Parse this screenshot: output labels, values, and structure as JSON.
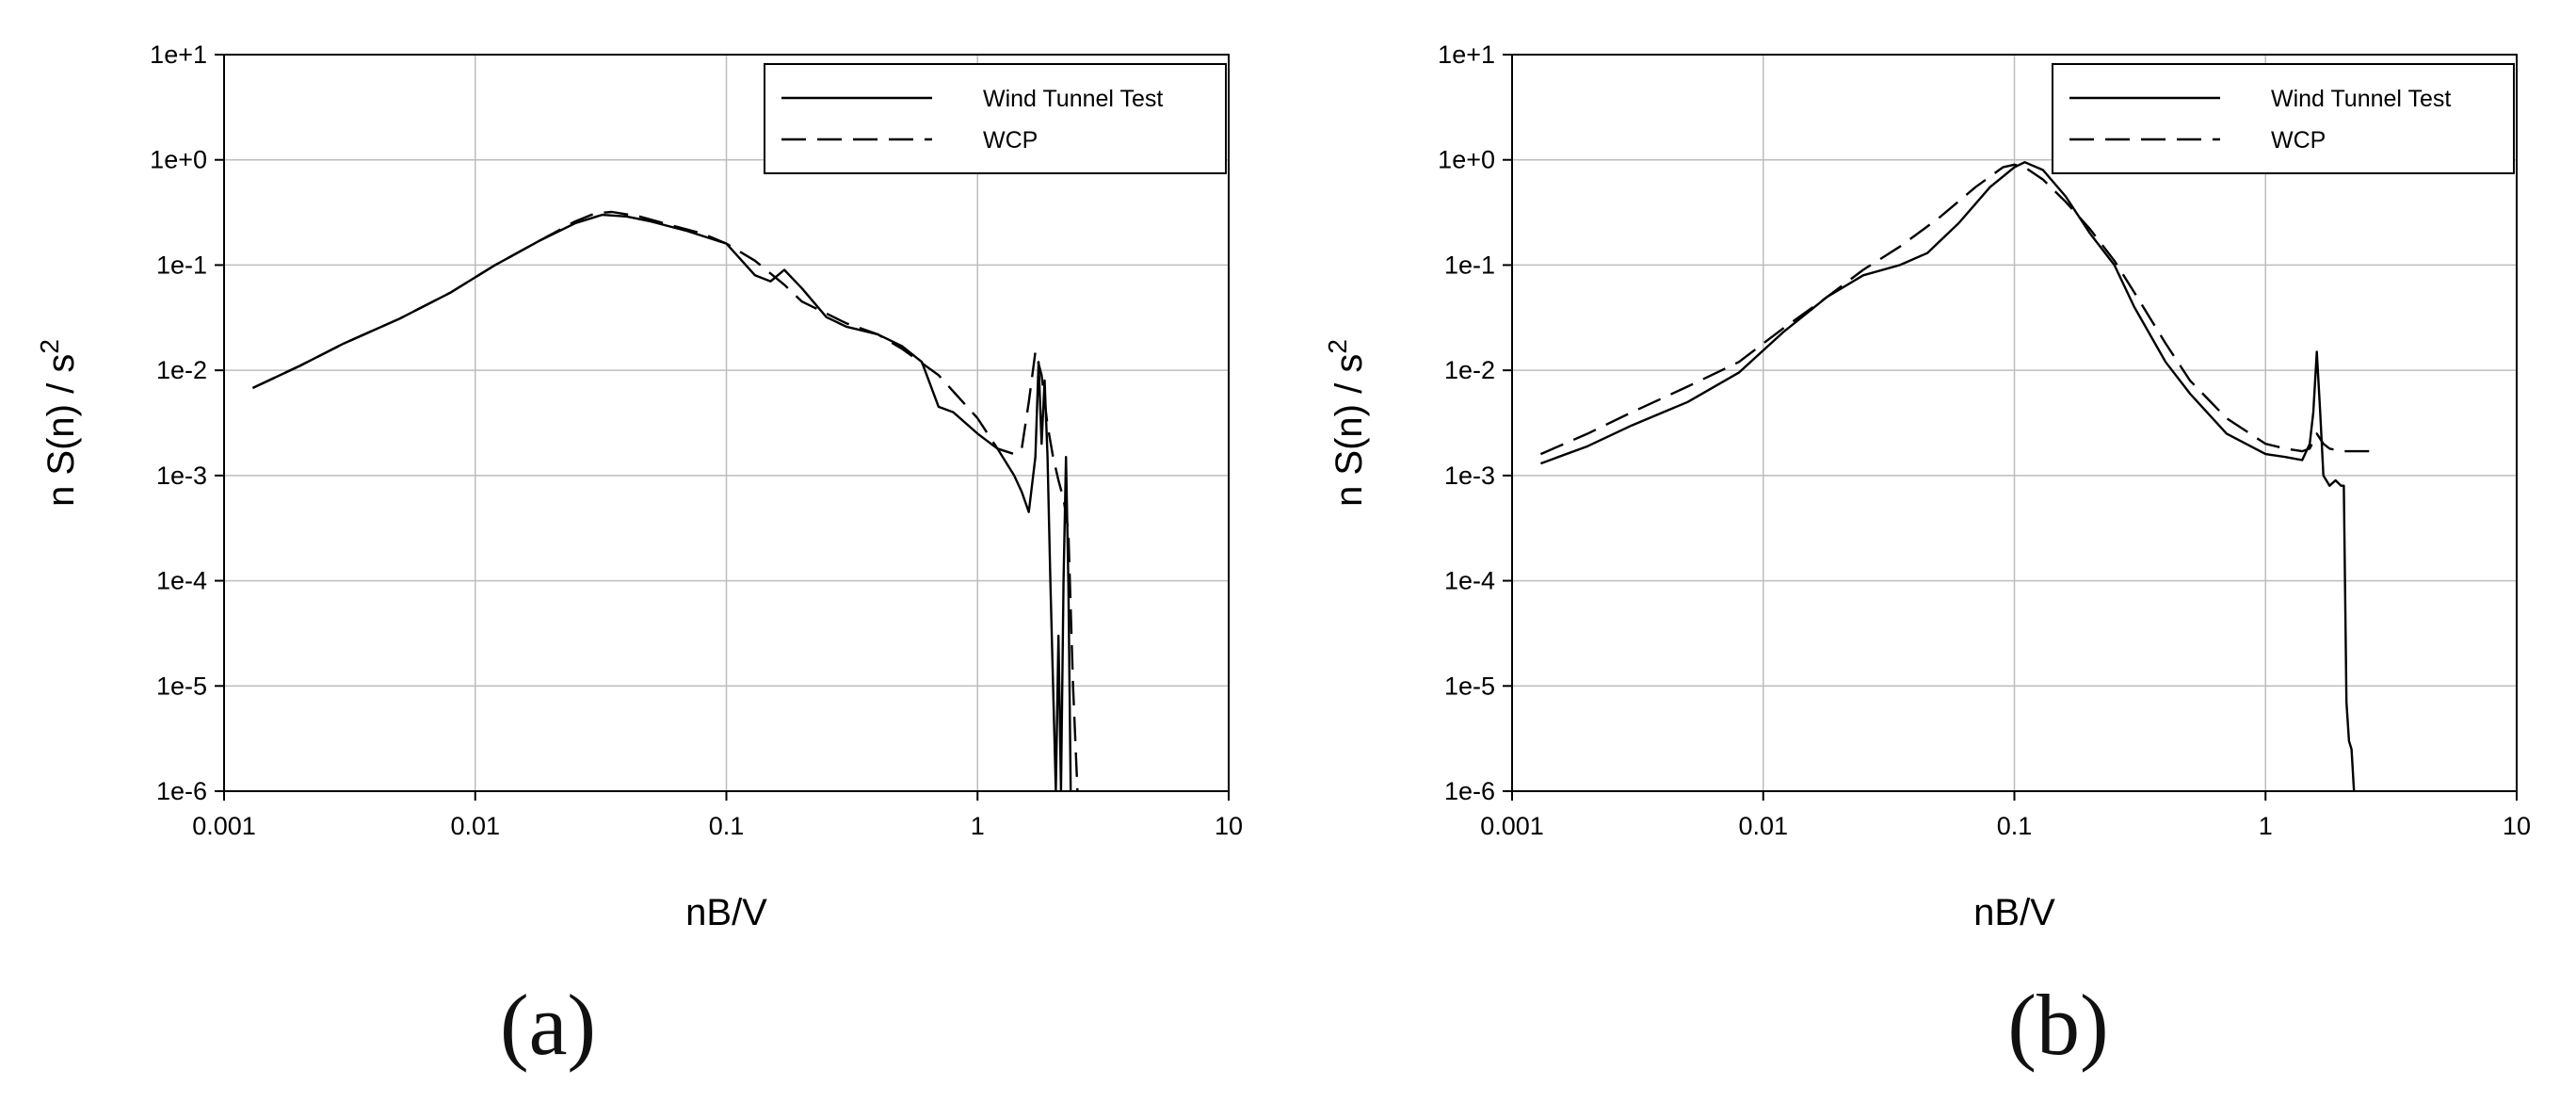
{
  "chart_data": [
    {
      "type": "line",
      "caption": "(a)",
      "xlabel": "nB/V",
      "ylabel": "n S(n) / s",
      "ylabel_superscript": "2",
      "xscale": "log",
      "yscale": "log",
      "xlim": [
        0.001,
        10
      ],
      "ylim": [
        1e-06,
        10
      ],
      "grid": "horizontal and vertical at decades",
      "legend_position": "top-right",
      "xtick_labels": [
        "0.001",
        "0.01",
        "0.1",
        "1",
        "10"
      ],
      "ytick_labels": [
        "1e-6",
        "1e-5",
        "1e-4",
        "1e-3",
        "1e-2",
        "1e-1",
        "1e+0",
        "1e+1"
      ],
      "series": [
        {
          "name": "Wind Tunnel Test",
          "style": "solid",
          "x": [
            0.0013,
            0.002,
            0.003,
            0.005,
            0.008,
            0.012,
            0.018,
            0.025,
            0.032,
            0.04,
            0.05,
            0.07,
            0.1,
            0.13,
            0.15,
            0.17,
            0.2,
            0.25,
            0.3,
            0.4,
            0.5,
            0.6,
            0.7,
            0.8,
            1.0,
            1.2,
            1.4,
            1.5,
            1.6,
            1.7,
            1.75,
            1.8,
            1.85,
            1.9,
            1.95,
            2.0,
            2.05,
            2.1,
            2.15,
            2.2,
            2.25,
            2.3,
            2.35
          ],
          "y": [
            0.0068,
            0.011,
            0.018,
            0.031,
            0.055,
            0.1,
            0.17,
            0.25,
            0.3,
            0.29,
            0.26,
            0.21,
            0.16,
            0.08,
            0.07,
            0.09,
            0.06,
            0.032,
            0.026,
            0.022,
            0.017,
            0.012,
            0.0045,
            0.004,
            0.0025,
            0.0018,
            0.001,
            0.0007,
            0.00045,
            0.0015,
            0.012,
            0.002,
            0.008,
            0.0015,
            0.0001,
            1e-05,
            1e-06,
            3e-05,
            1e-06,
            0.0001,
            0.0015,
            0.0001,
            1e-06
          ]
        },
        {
          "name": "WCP",
          "style": "dashed",
          "x": [
            0.0013,
            0.002,
            0.003,
            0.005,
            0.008,
            0.012,
            0.018,
            0.025,
            0.03,
            0.035,
            0.045,
            0.06,
            0.08,
            0.1,
            0.13,
            0.17,
            0.2,
            0.3,
            0.4,
            0.5,
            0.7,
            1.0,
            1.2,
            1.4,
            1.5,
            1.6,
            1.7,
            1.8,
            1.9,
            2.0,
            2.1,
            2.2,
            2.3,
            2.4,
            2.5
          ],
          "y": [
            0.0068,
            0.011,
            0.018,
            0.031,
            0.055,
            0.1,
            0.17,
            0.26,
            0.31,
            0.32,
            0.29,
            0.24,
            0.2,
            0.16,
            0.11,
            0.065,
            0.045,
            0.028,
            0.022,
            0.016,
            0.009,
            0.0035,
            0.0018,
            0.0016,
            0.0018,
            0.005,
            0.015,
            0.009,
            0.003,
            0.0015,
            0.0009,
            0.0006,
            0.0003,
            1e-05,
            1e-06
          ]
        }
      ]
    },
    {
      "type": "line",
      "caption": "(b)",
      "xlabel": "nB/V",
      "ylabel": "n S(n) / s",
      "ylabel_superscript": "2",
      "xscale": "log",
      "yscale": "log",
      "xlim": [
        0.001,
        10
      ],
      "ylim": [
        1e-06,
        10
      ],
      "grid": "horizontal and vertical at decades",
      "legend_position": "top-right",
      "xtick_labels": [
        "0.001",
        "0.01",
        "0.1",
        "1",
        "10"
      ],
      "ytick_labels": [
        "1e-6",
        "1e-5",
        "1e-4",
        "1e-3",
        "1e-2",
        "1e-1",
        "1e+0",
        "1e+1"
      ],
      "series": [
        {
          "name": "Wind Tunnel Test",
          "style": "solid",
          "x": [
            0.0013,
            0.002,
            0.003,
            0.005,
            0.008,
            0.012,
            0.018,
            0.025,
            0.035,
            0.045,
            0.06,
            0.08,
            0.1,
            0.11,
            0.13,
            0.16,
            0.2,
            0.25,
            0.3,
            0.4,
            0.5,
            0.7,
            1.0,
            1.2,
            1.4,
            1.5,
            1.55,
            1.6,
            1.65,
            1.7,
            1.8,
            1.9,
            2.0,
            2.05,
            2.1,
            2.15,
            2.2,
            2.25
          ],
          "y": [
            0.0013,
            0.0019,
            0.003,
            0.005,
            0.0095,
            0.023,
            0.05,
            0.08,
            0.1,
            0.13,
            0.25,
            0.55,
            0.85,
            0.95,
            0.8,
            0.45,
            0.2,
            0.1,
            0.04,
            0.012,
            0.006,
            0.0025,
            0.0016,
            0.0015,
            0.0014,
            0.002,
            0.004,
            0.015,
            0.004,
            0.001,
            0.0008,
            0.0009,
            0.0008,
            0.0008,
            7e-06,
            3e-06,
            2.5e-06,
            1e-06
          ]
        },
        {
          "name": "WCP",
          "style": "dashed",
          "x": [
            0.0013,
            0.002,
            0.003,
            0.005,
            0.008,
            0.012,
            0.018,
            0.025,
            0.035,
            0.05,
            0.07,
            0.09,
            0.1,
            0.11,
            0.13,
            0.16,
            0.2,
            0.25,
            0.3,
            0.4,
            0.5,
            0.7,
            1.0,
            1.2,
            1.4,
            1.5,
            1.6,
            1.7,
            1.8,
            2.0,
            2.2,
            2.5,
            2.7
          ],
          "y": [
            0.0016,
            0.0025,
            0.004,
            0.007,
            0.012,
            0.025,
            0.05,
            0.09,
            0.15,
            0.28,
            0.55,
            0.85,
            0.9,
            0.85,
            0.65,
            0.4,
            0.22,
            0.11,
            0.055,
            0.018,
            0.008,
            0.0035,
            0.002,
            0.0018,
            0.0017,
            0.0018,
            0.0025,
            0.002,
            0.0018,
            0.0017,
            0.0017,
            0.0017,
            0.0017
          ]
        }
      ]
    }
  ]
}
